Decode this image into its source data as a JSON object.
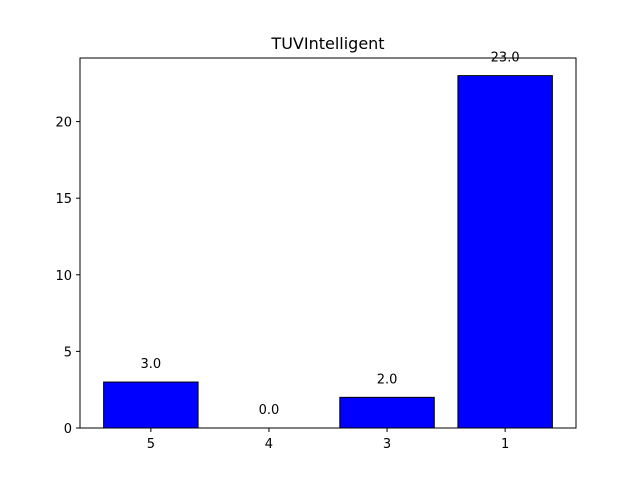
{
  "chart_data": {
    "type": "bar",
    "title": "TUVIntelligent",
    "xlabel": "",
    "ylabel": "",
    "categories": [
      "5",
      "4",
      "3",
      "1"
    ],
    "values": [
      3.0,
      0.0,
      2.0,
      23.0
    ],
    "data_labels": [
      "3.0",
      "0.0",
      "2.0",
      "23.0"
    ],
    "yticks": [
      0,
      5,
      10,
      15,
      20
    ],
    "ylim": [
      0,
      24.15
    ],
    "grid": false,
    "bar_color": "#0000ff",
    "bar_edge_color": "#000000"
  }
}
